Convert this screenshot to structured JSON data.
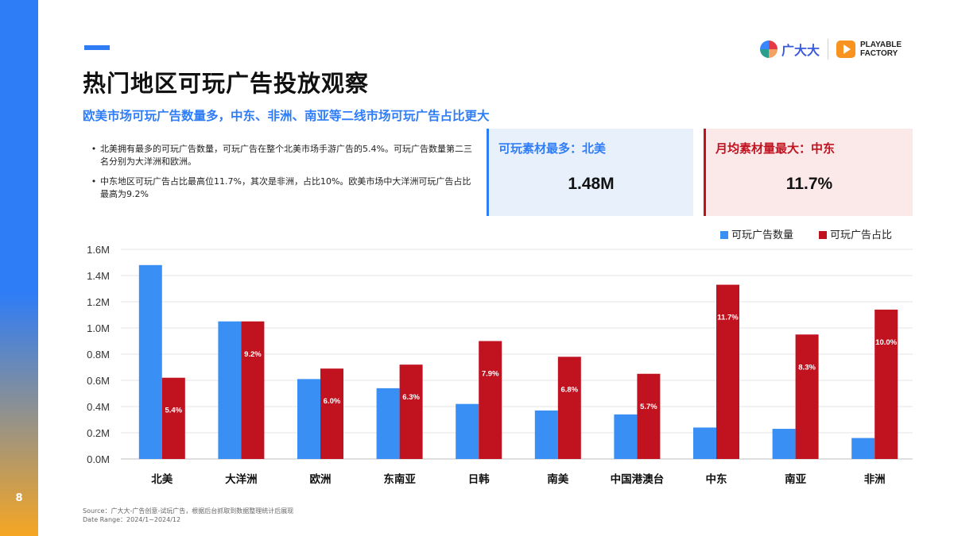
{
  "page": {
    "number": "8",
    "title": "热门地区可玩广告投放观察",
    "subtitle": "欧美市场可玩广告数量多，中东、非洲、南亚等二线市场可玩广告占比更大"
  },
  "logo": {
    "cn": "广大大",
    "pf_line1": "PLAYABLE",
    "pf_line2": "FACTORY"
  },
  "bullets": [
    "北美拥有最多的可玩广告数量，可玩广告在整个北美市场手游广告的5.4%。可玩广告数量第二三名分别为大洋洲和欧洲。",
    "中东地区可玩广告占比最高位11.7%，其次是非洲，占比10%。欧美市场中大洋洲可玩广告占比最高为9.2%"
  ],
  "cards": {
    "left": {
      "label": "可玩素材最多：北美",
      "value": "1.48M"
    },
    "right": {
      "label": "月均素材量最大：中东",
      "value": "11.7%"
    }
  },
  "chart_data": {
    "type": "bar",
    "categories": [
      "北美",
      "大洋洲",
      "欧洲",
      "东南亚",
      "日韩",
      "南美",
      "中国港澳台",
      "中东",
      "南亚",
      "非洲"
    ],
    "series": [
      {
        "name": "可玩广告数量",
        "color": "#3a8ff5",
        "values": [
          1.48,
          1.05,
          0.61,
          0.54,
          0.42,
          0.37,
          0.34,
          0.24,
          0.23,
          0.16
        ]
      },
      {
        "name": "可玩广告占比",
        "color": "#c0121f",
        "values": [
          0.62,
          1.05,
          0.69,
          0.72,
          0.9,
          0.78,
          0.65,
          1.33,
          0.95,
          1.14
        ],
        "data_labels": [
          "5.4%",
          "9.2%",
          "6.0%",
          "6.3%",
          "7.9%",
          "6.8%",
          "5.7%",
          "11.7%",
          "8.3%",
          "10.0%"
        ]
      }
    ],
    "yticks": [
      "0.0M",
      "0.2M",
      "0.4M",
      "0.6M",
      "0.8M",
      "1.0M",
      "1.2M",
      "1.4M",
      "1.6M"
    ],
    "ylim": [
      0,
      1.6
    ],
    "grid": true,
    "legend_position": "top-right"
  },
  "footnote": {
    "source": "Source：广大大-广告创意-试玩广告，根据后台抓取到数据整理统计后展现",
    "date_range": "Date Range：2024/1~2024/12"
  }
}
